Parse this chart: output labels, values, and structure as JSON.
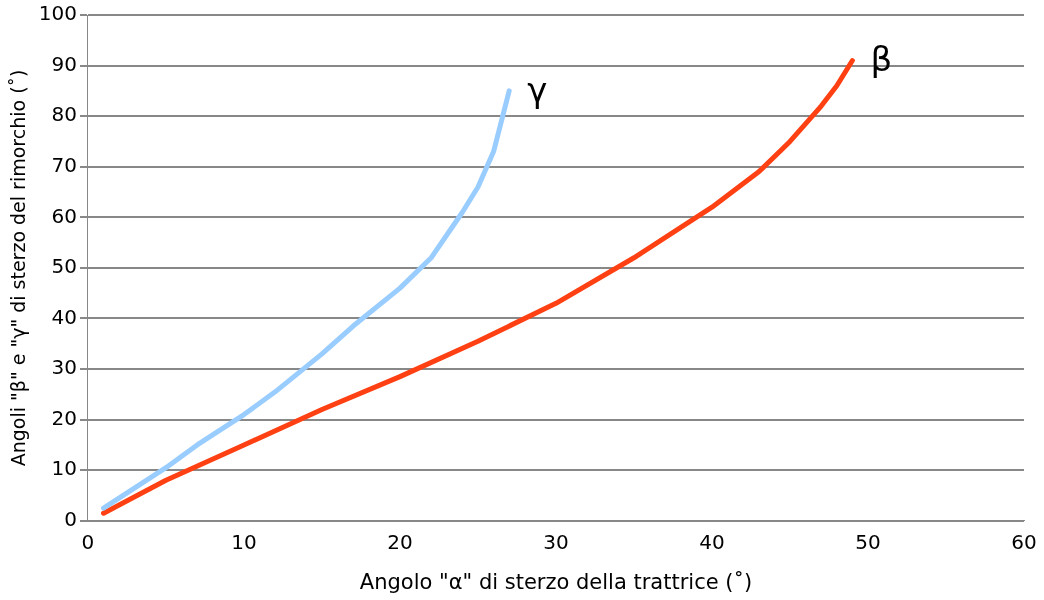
{
  "chart_data": {
    "type": "line",
    "xlabel": "Angolo \"α\" di sterzo della trattrice (˚)",
    "ylabel": "Angoli \"β\" e \"γ\" di sterzo del rimorchio (˚)",
    "xlim": [
      0,
      60
    ],
    "xticks": [
      0,
      10,
      20,
      30,
      40,
      50,
      60
    ],
    "ylim": [
      0,
      100
    ],
    "yticks": [
      0,
      10,
      20,
      30,
      40,
      50,
      60,
      70,
      80,
      90,
      100
    ],
    "grid": "y",
    "legend": false,
    "marker": "none",
    "line_style": "solid",
    "series": [
      {
        "name": "γ",
        "color": "#99ccff",
        "x": [
          1,
          3,
          5,
          7,
          10,
          12,
          15,
          17,
          20,
          22,
          24,
          25,
          26,
          27
        ],
        "values": [
          2.5,
          6.5,
          10.5,
          15,
          21,
          25.5,
          33,
          38.5,
          46,
          52,
          61,
          66,
          73,
          85
        ]
      },
      {
        "name": "β",
        "color": "#ff4013",
        "x": [
          1,
          5,
          10,
          15,
          20,
          25,
          30,
          35,
          40,
          43,
          45,
          47,
          48,
          49
        ],
        "values": [
          1.5,
          8,
          15,
          22,
          28.5,
          35.5,
          43,
          52,
          62,
          69,
          75,
          82,
          86,
          91
        ]
      }
    ]
  }
}
